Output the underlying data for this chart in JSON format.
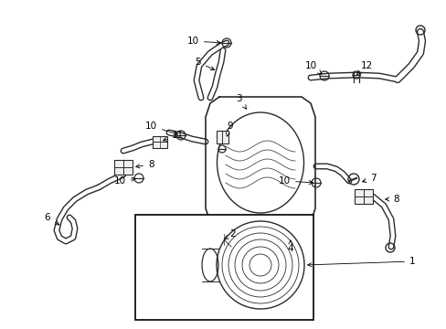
{
  "bg_color": "#ffffff",
  "line_color": "#2a2a2a",
  "fig_width": 4.89,
  "fig_height": 3.6,
  "dpi": 100,
  "label_fontsize": 7.5,
  "arrow_lw": 0.6
}
